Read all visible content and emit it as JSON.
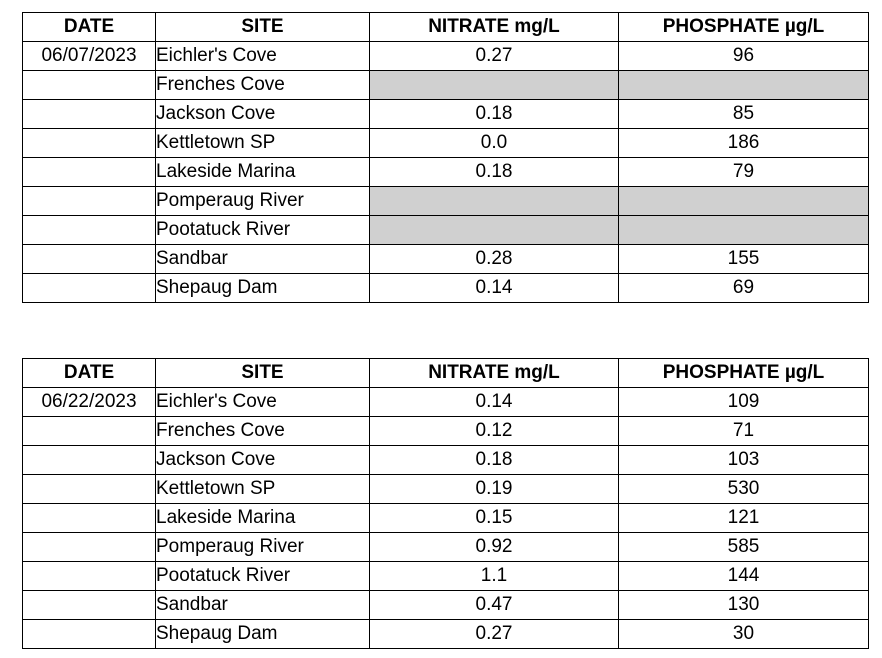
{
  "headers": {
    "date": "DATE",
    "site": "SITE",
    "nitrate": "NITRATE mg/L",
    "phosphate": "PHOSPHATE µg/L"
  },
  "tables": [
    {
      "date": "06/07/2023",
      "rows": [
        {
          "site": "Eichler's Cove",
          "nitrate": "0.27",
          "phosphate": "96",
          "missing": false
        },
        {
          "site": "Frenches Cove",
          "nitrate": "",
          "phosphate": "",
          "missing": true
        },
        {
          "site": "Jackson Cove",
          "nitrate": "0.18",
          "phosphate": "85",
          "missing": false
        },
        {
          "site": "Kettletown SP",
          "nitrate": "0.0",
          "phosphate": "186",
          "missing": false
        },
        {
          "site": "Lakeside Marina",
          "nitrate": "0.18",
          "phosphate": "79",
          "missing": false
        },
        {
          "site": "Pomperaug River",
          "nitrate": "",
          "phosphate": "",
          "missing": true
        },
        {
          "site": "Pootatuck River",
          "nitrate": "",
          "phosphate": "",
          "missing": true
        },
        {
          "site": "Sandbar",
          "nitrate": "0.28",
          "phosphate": "155",
          "missing": false
        },
        {
          "site": "Shepaug Dam",
          "nitrate": "0.14",
          "phosphate": "69",
          "missing": false
        }
      ]
    },
    {
      "date": "06/22/2023",
      "rows": [
        {
          "site": "Eichler's Cove",
          "nitrate": "0.14",
          "phosphate": "109",
          "missing": false
        },
        {
          "site": "Frenches Cove",
          "nitrate": "0.12",
          "phosphate": "71",
          "missing": false
        },
        {
          "site": "Jackson Cove",
          "nitrate": "0.18",
          "phosphate": "103",
          "missing": false
        },
        {
          "site": "Kettletown SP",
          "nitrate": "0.19",
          "phosphate": "530",
          "missing": false
        },
        {
          "site": "Lakeside Marina",
          "nitrate": "0.15",
          "phosphate": "121",
          "missing": false
        },
        {
          "site": "Pomperaug River",
          "nitrate": "0.92",
          "phosphate": "585",
          "missing": false
        },
        {
          "site": "Pootatuck River",
          "nitrate": "1.1",
          "phosphate": "144",
          "missing": false
        },
        {
          "site": "Sandbar",
          "nitrate": "0.47",
          "phosphate": "130",
          "missing": false
        },
        {
          "site": "Shepaug Dam",
          "nitrate": "0.27",
          "phosphate": "30",
          "missing": false
        }
      ]
    }
  ],
  "colors": {
    "missing_cell": "#d0d0d0",
    "border": "#000000"
  }
}
